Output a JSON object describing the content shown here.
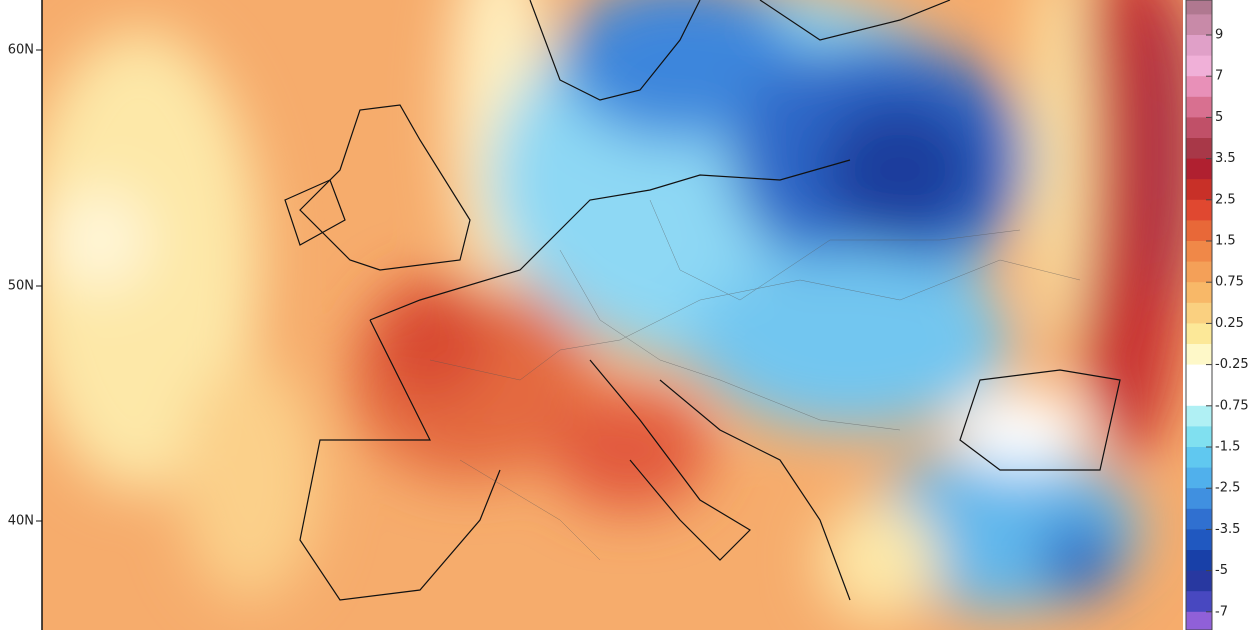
{
  "map": {
    "latitude_labels": [
      "60N",
      "50N",
      "40N"
    ],
    "colorbar_labels": [
      "9",
      "7",
      "5",
      "3.5",
      "2.5",
      "1.5",
      "0.75",
      "0.25",
      "-0.25",
      "-0.75",
      "-1.5",
      "-2.5",
      "-3.5",
      "-5",
      "-7"
    ]
  }
}
